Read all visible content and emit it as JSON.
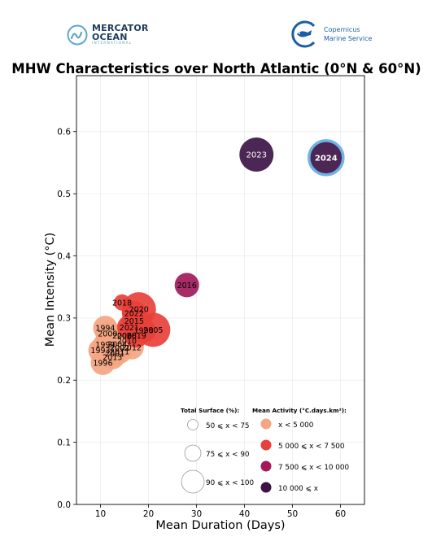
{
  "logos": {
    "mercator": {
      "line1": "MERCATOR",
      "line2": "OCEAN",
      "line3": "INTERNATIONAL",
      "color": "#1f3a5f",
      "accent": "#5fa8c9"
    },
    "copernicus": {
      "line1": "Copernicus",
      "line2": "Marine Service",
      "color": "#1a5fa5"
    }
  },
  "chart_data": {
    "type": "scatter",
    "title": "MHW Characteristics over North Atlantic (0°N & 60°N)",
    "xlabel": "Mean Duration (Days)",
    "ylabel": "Mean Intensity (°C)",
    "xlim": [
      5,
      65
    ],
    "ylim": [
      0,
      0.69
    ],
    "xticks": [
      10,
      20,
      30,
      40,
      50,
      60
    ],
    "yticks": [
      0.0,
      0.1,
      0.2,
      0.3,
      0.4,
      0.5,
      0.6
    ],
    "grid": true,
    "points": [
      {
        "year": "1993",
        "x": 10.0,
        "y": 0.248,
        "activity_class": 0,
        "surface_class": 1
      },
      {
        "year": "1996",
        "x": 10.5,
        "y": 0.228,
        "activity_class": 0,
        "surface_class": 1
      },
      {
        "year": "1999",
        "x": 11.0,
        "y": 0.257,
        "activity_class": 0,
        "surface_class": 1
      },
      {
        "year": "2013",
        "x": 12.5,
        "y": 0.237,
        "activity_class": 0,
        "surface_class": 1
      },
      {
        "year": "1994",
        "x": 11.0,
        "y": 0.284,
        "activity_class": 0,
        "surface_class": 1
      },
      {
        "year": "2000",
        "x": 11.5,
        "y": 0.275,
        "activity_class": 0,
        "surface_class": 1
      },
      {
        "year": "2001",
        "x": 13.0,
        "y": 0.243,
        "activity_class": 0,
        "surface_class": 1
      },
      {
        "year": "2011",
        "x": 14.0,
        "y": 0.246,
        "activity_class": 0,
        "surface_class": 1
      },
      {
        "year": "2002",
        "x": 14.0,
        "y": 0.252,
        "activity_class": 0,
        "surface_class": 1
      },
      {
        "year": "2004",
        "x": 13.5,
        "y": 0.258,
        "activity_class": 0,
        "surface_class": 1
      },
      {
        "year": "2006",
        "x": 14.5,
        "y": 0.272,
        "activity_class": 0,
        "surface_class": 1
      },
      {
        "year": "2008",
        "x": 15.5,
        "y": 0.272,
        "activity_class": 0,
        "surface_class": 1
      },
      {
        "year": "2010",
        "x": 15.5,
        "y": 0.263,
        "activity_class": 0,
        "surface_class": 1
      },
      {
        "year": "2012",
        "x": 16.5,
        "y": 0.253,
        "activity_class": 0,
        "surface_class": 1
      },
      {
        "year": "2021",
        "x": 16.0,
        "y": 0.285,
        "activity_class": 1,
        "surface_class": 1
      },
      {
        "year": "2015",
        "x": 17.0,
        "y": 0.295,
        "activity_class": 1,
        "surface_class": 1
      },
      {
        "year": "2019",
        "x": 17.5,
        "y": 0.272,
        "activity_class": 1,
        "surface_class": 1
      },
      {
        "year": "1998",
        "x": 19.0,
        "y": 0.28,
        "activity_class": 1,
        "surface_class": 1
      },
      {
        "year": "2005",
        "x": 21.0,
        "y": 0.281,
        "activity_class": 1,
        "surface_class": 2
      },
      {
        "year": "2018",
        "x": 14.5,
        "y": 0.325,
        "activity_class": 1,
        "surface_class": 0
      },
      {
        "year": "2020",
        "x": 18.0,
        "y": 0.314,
        "activity_class": 1,
        "surface_class": 2
      },
      {
        "year": "2022",
        "x": 17.0,
        "y": 0.308,
        "activity_class": 1,
        "surface_class": 1
      },
      {
        "year": "2016",
        "x": 28.0,
        "y": 0.353,
        "activity_class": 2,
        "surface_class": 1
      },
      {
        "year": "2023",
        "x": 42.5,
        "y": 0.563,
        "activity_class": 3,
        "surface_class": 2
      },
      {
        "year": "2024",
        "x": 57.0,
        "y": 0.558,
        "activity_class": 3,
        "surface_class": 2,
        "highlight": true,
        "highlight_color": "#6fb3e6"
      }
    ],
    "legend_surface": {
      "title": "Total Surface (%):",
      "items": [
        "50 ⩽ x < 75",
        "75 ⩽ x < 90",
        "90 ⩽ x < 100"
      ]
    },
    "legend_activity": {
      "title": "Mean Activity (°C.days.km²):",
      "items": [
        "x < 5 000",
        "5 000 ⩽ x < 7 500",
        "7 500 ⩽ x < 10 000",
        "10 000 ⩽ x"
      ],
      "colors": [
        "#f4a582",
        "#e8403a",
        "#a11a5b",
        "#3d1346"
      ]
    },
    "legend_placement": "lower-right"
  }
}
